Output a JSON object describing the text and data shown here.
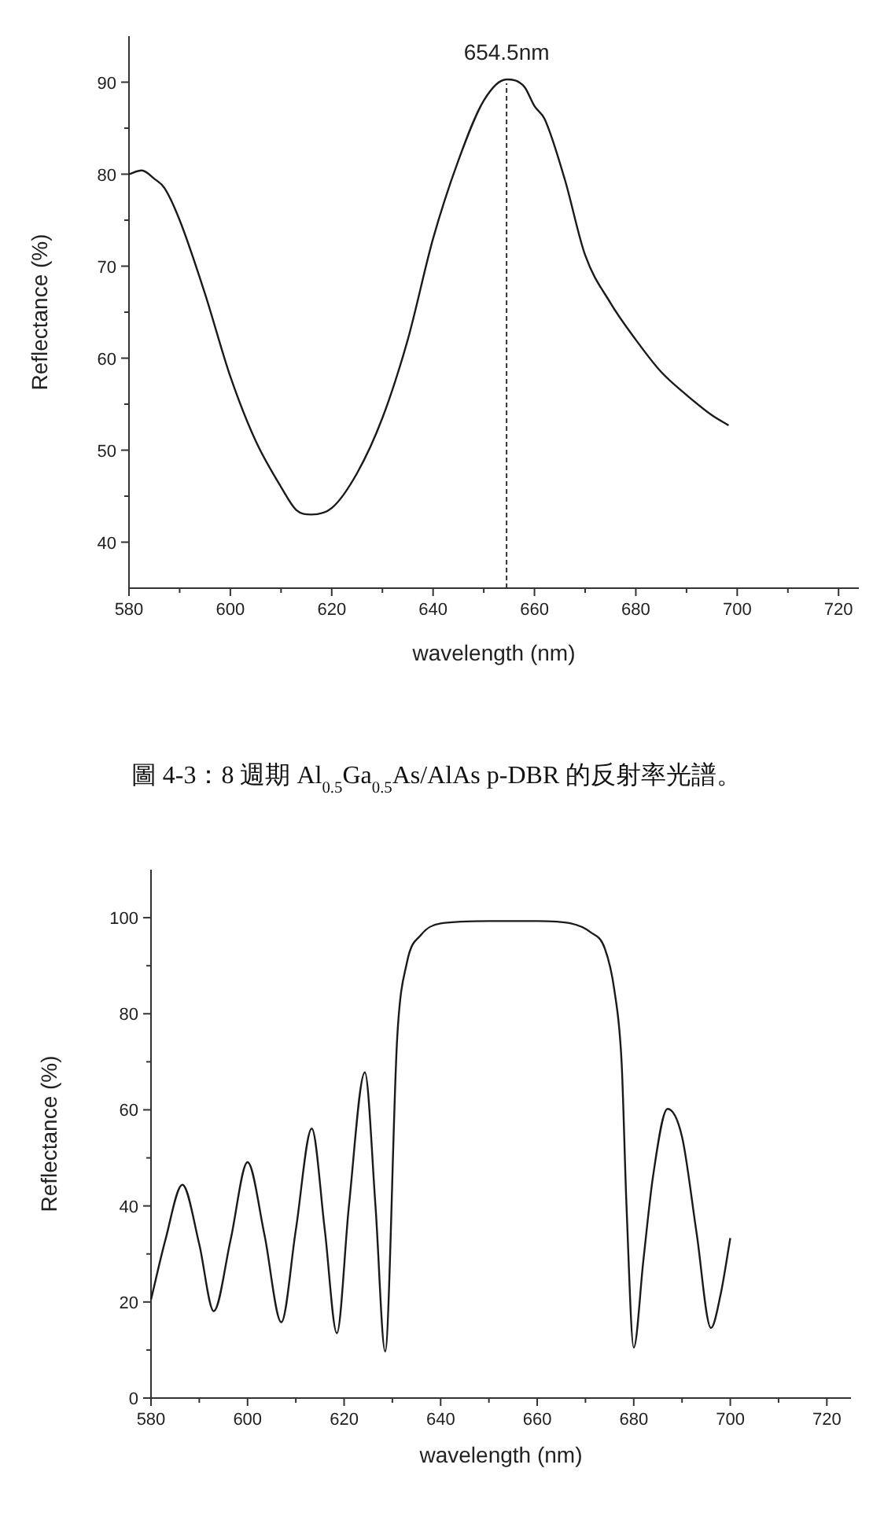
{
  "chart_data": [
    {
      "type": "line",
      "xlabel": "wavelength (nm)",
      "ylabel": "Reflectance (%)",
      "x": [
        580,
        582.5,
        585,
        587,
        590,
        595,
        600,
        605,
        610,
        613,
        616,
        620,
        625,
        630,
        635,
        640,
        645,
        650,
        654.5,
        658,
        660,
        662,
        666,
        670,
        675,
        680,
        685,
        690,
        695,
        698.3
      ],
      "series": [
        {
          "color": "#1a1a1a",
          "values": [
            80,
            80.4,
            79.5,
            78.5,
            75,
            67,
            58,
            51,
            46,
            43.5,
            43,
            43.7,
            47.5,
            53.5,
            62,
            73,
            81.5,
            88,
            90.3,
            89.5,
            87.4,
            86,
            79.4,
            71.2,
            66,
            62,
            58.5,
            56,
            53.8,
            52.7
          ]
        }
      ],
      "xlim": [
        580,
        724
      ],
      "ylim": [
        35,
        95
      ],
      "xticks": [
        580,
        {
          "value": 590,
          "label": null
        },
        600,
        {
          "value": 610,
          "label": null
        },
        620,
        {
          "value": 630,
          "label": null
        },
        640,
        {
          "value": 650,
          "label": null
        },
        660,
        {
          "value": 670,
          "label": null
        },
        680,
        {
          "value": 690,
          "label": null
        },
        700,
        {
          "value": 710,
          "label": null
        },
        720
      ],
      "yticks": [
        40,
        {
          "value": 45,
          "label": null
        },
        50,
        {
          "value": 55,
          "label": null
        },
        60,
        {
          "value": 65,
          "label": null
        },
        70,
        {
          "value": 75,
          "label": null
        },
        80,
        {
          "value": 85,
          "label": null
        },
        90
      ],
      "ref_lines": [
        {
          "axis": "x",
          "value": 654.5,
          "label": "654.5nm",
          "line_style": "dashed"
        }
      ],
      "annotations": [
        "圖 4-3：8 週期 Al$_{0.5}$Ga$_{0.5}$As/AlAs p-DBR 的反射率光譜。"
      ]
    },
    {
      "type": "line",
      "xlabel": "wavelength (nm)",
      "ylabel": "Reflectance (%)",
      "x": [
        580,
        583,
        586.5,
        590,
        593,
        596.5,
        600,
        603.5,
        607,
        610,
        613.3,
        616,
        618.5,
        621,
        624.3,
        626.5,
        628.5,
        631,
        633,
        636,
        640,
        650,
        660,
        667,
        671,
        674,
        676,
        677.5,
        678.5,
        680,
        682,
        684,
        687,
        690,
        693,
        696,
        698,
        700
      ],
      "series": [
        {
          "color": "#1a1a1a",
          "values": [
            20.5,
            33,
            44.4,
            32,
            18.1,
            33,
            49.1,
            34,
            15.8,
            35,
            56.1,
            35,
            13.5,
            40,
            67.8,
            40,
            9.7,
            75,
            90.6,
            96.5,
            98.8,
            99.3,
            99.3,
            98.8,
            97,
            93.6,
            84.8,
            69.6,
            40,
            10.5,
            28.7,
            46.2,
            60.2,
            54.4,
            34.5,
            14.6,
            21.6,
            33.3
          ]
        }
      ],
      "xlim": [
        580,
        725
      ],
      "ylim": [
        0,
        110
      ],
      "xticks": [
        580,
        {
          "value": 590,
          "label": null
        },
        600,
        {
          "value": 610,
          "label": null
        },
        620,
        {
          "value": 630,
          "label": null
        },
        640,
        {
          "value": 650,
          "label": null
        },
        660,
        {
          "value": 670,
          "label": null
        },
        680,
        {
          "value": 690,
          "label": null
        },
        700,
        {
          "value": 710,
          "label": null
        },
        720
      ],
      "yticks": [
        0,
        {
          "value": 10,
          "label": null
        },
        20,
        {
          "value": 30,
          "label": null
        },
        40,
        {
          "value": 50,
          "label": null
        },
        60,
        {
          "value": 70,
          "label": null
        },
        80,
        {
          "value": 90,
          "label": null
        },
        100
      ]
    }
  ]
}
